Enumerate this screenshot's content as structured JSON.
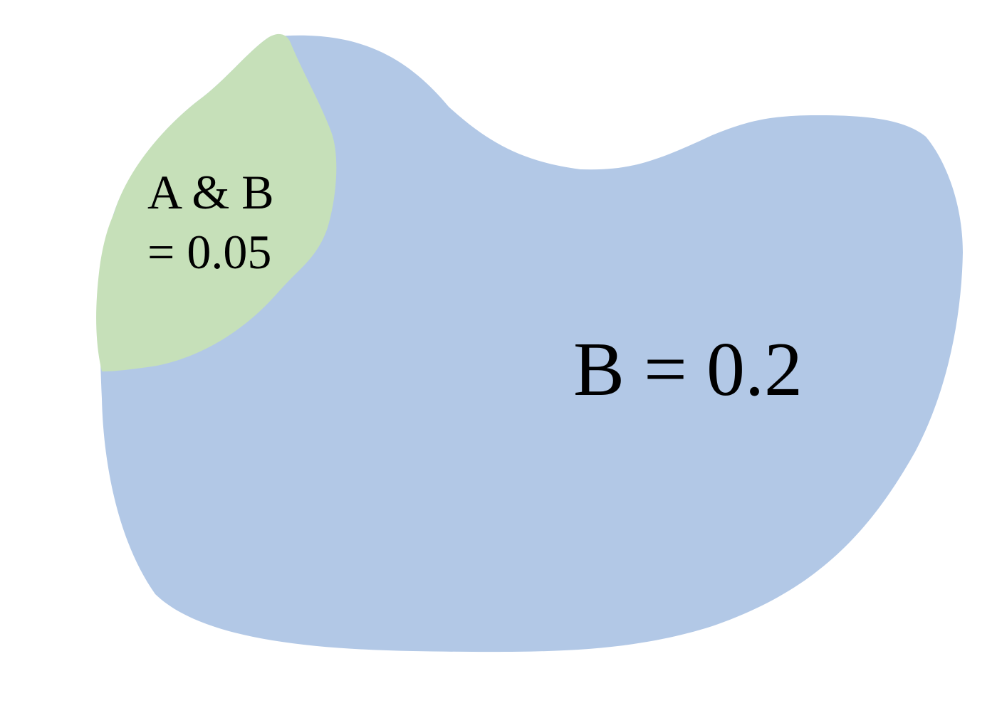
{
  "regions": {
    "b": {
      "label": "B = 0.2",
      "color": "#B2C8E6"
    },
    "a_and_b": {
      "label_line1": "A & B",
      "label_line2": "= 0.05",
      "color": "#C6E0B9"
    }
  }
}
